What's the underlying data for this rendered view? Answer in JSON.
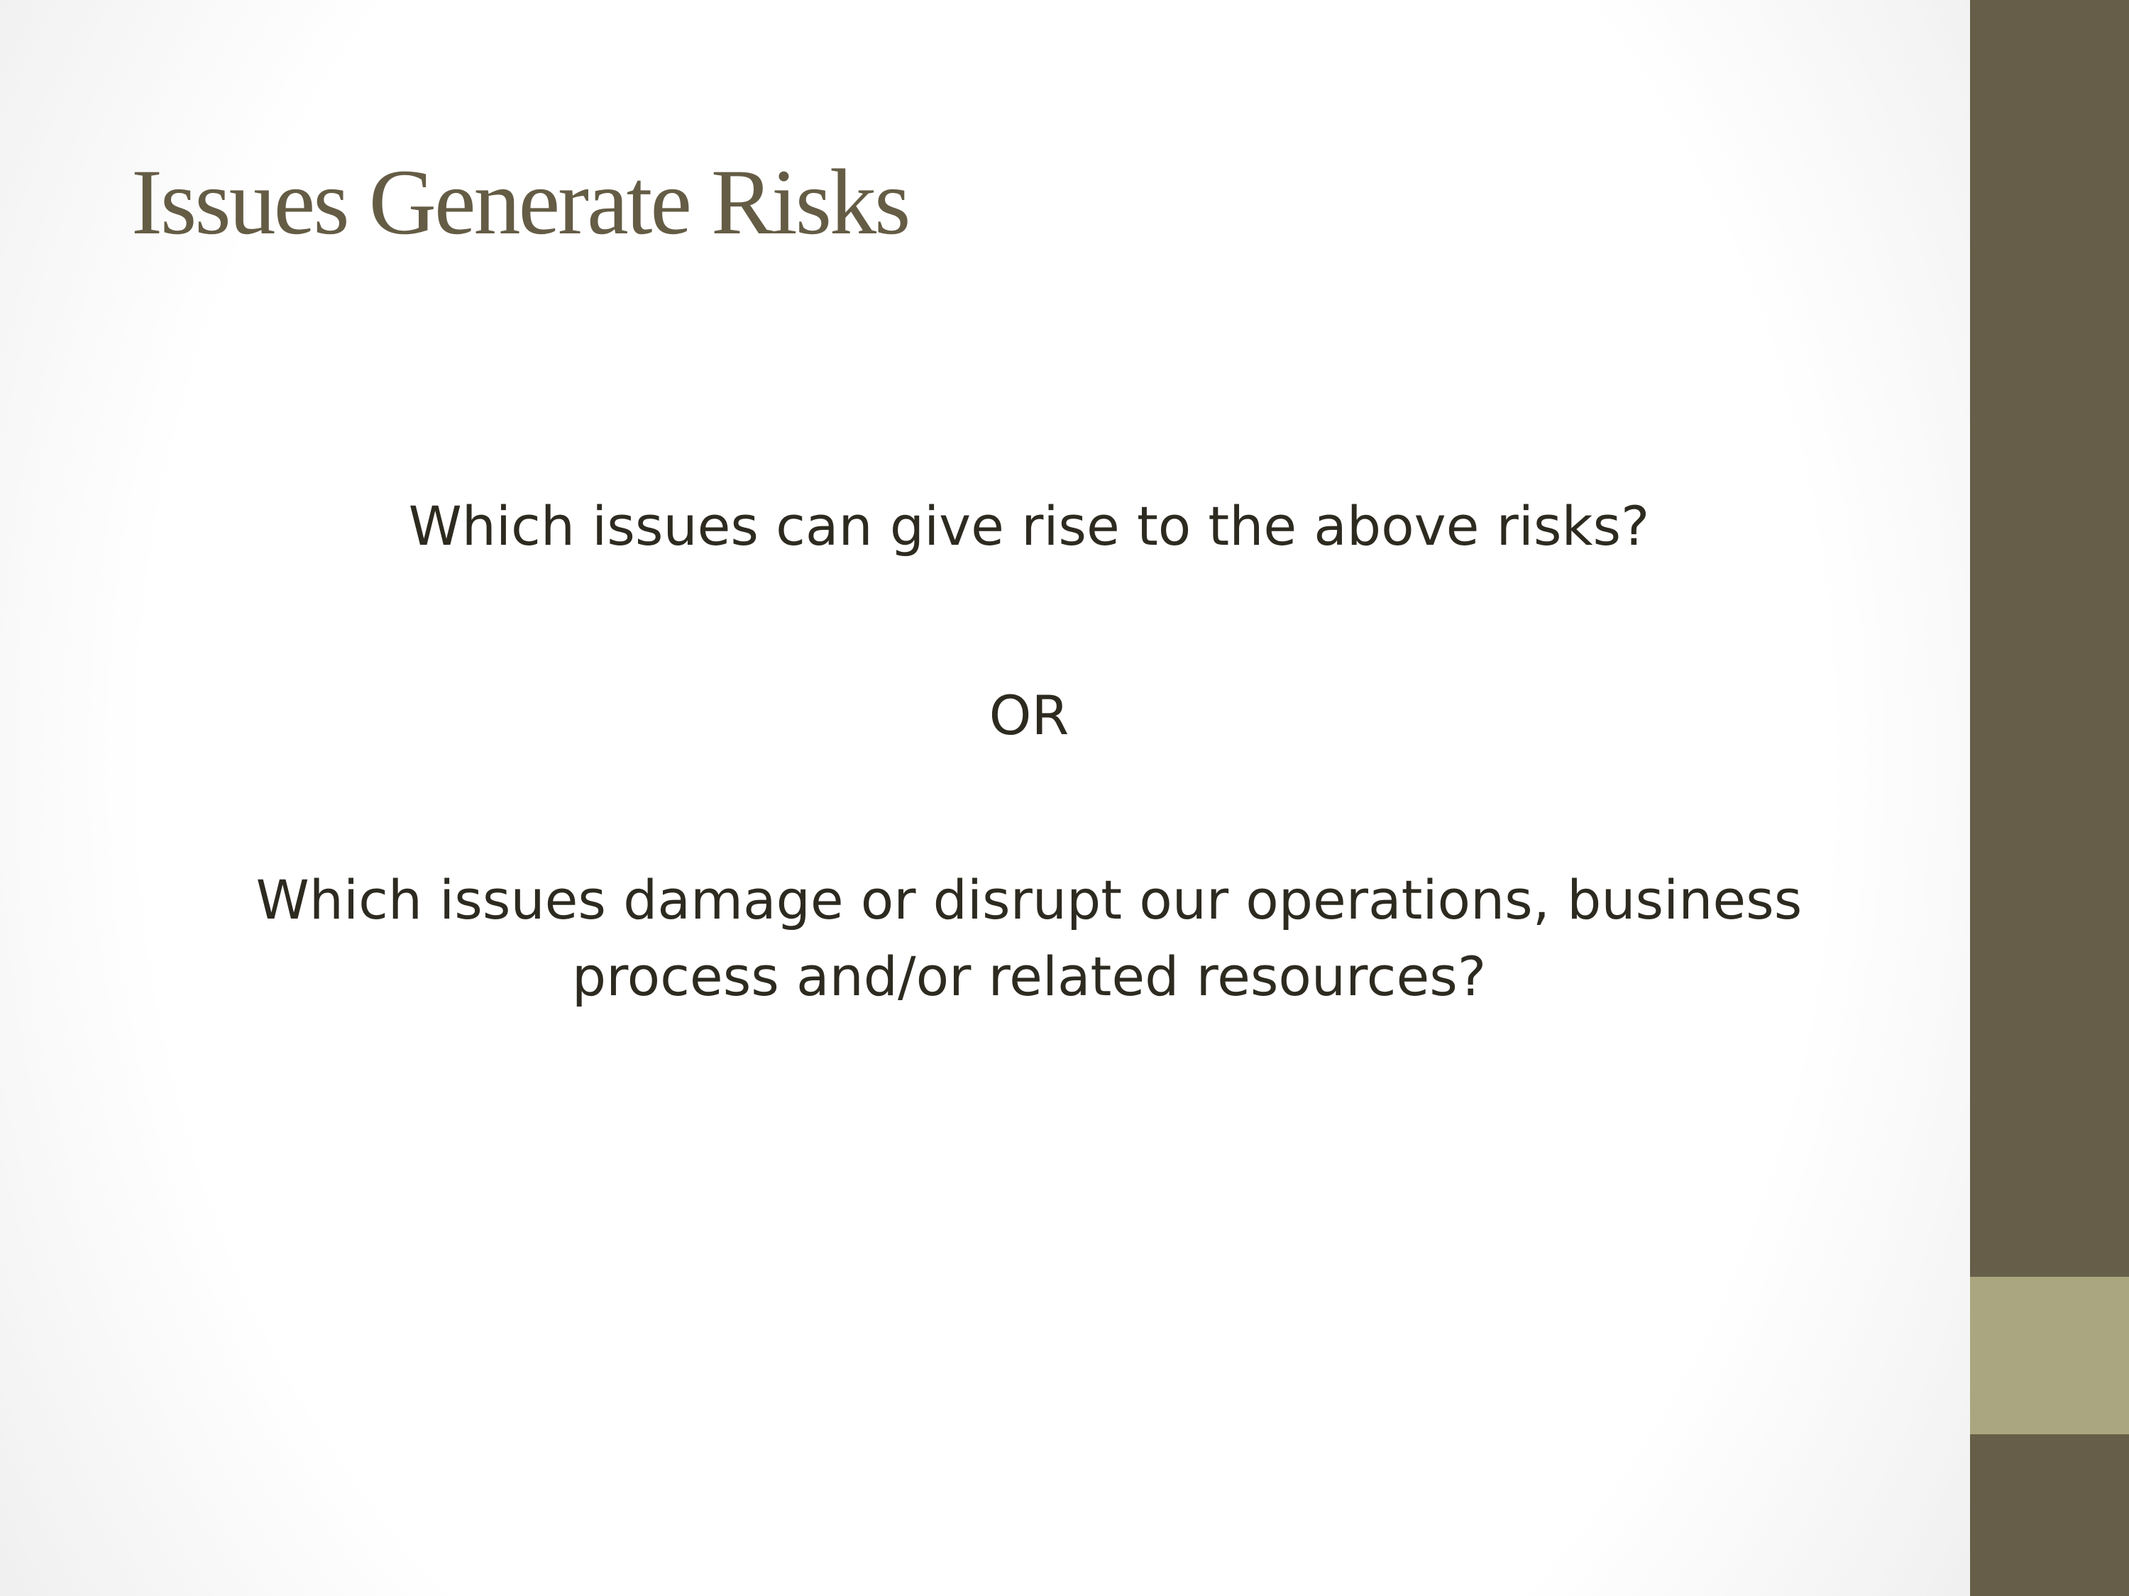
{
  "slide": {
    "title": "Issues Generate Risks",
    "question_1": "Which issues can give rise to the above risks?",
    "separator": "OR",
    "question_2_line_1": "Which issues damage or disrupt our operations, business",
    "question_2_line_2": "process and/or related resources?"
  },
  "colors": {
    "title": "#655c45",
    "body_text": "#2d2a20",
    "side_bar": "#665e48",
    "side_bar_accent": "#aaa67f"
  }
}
